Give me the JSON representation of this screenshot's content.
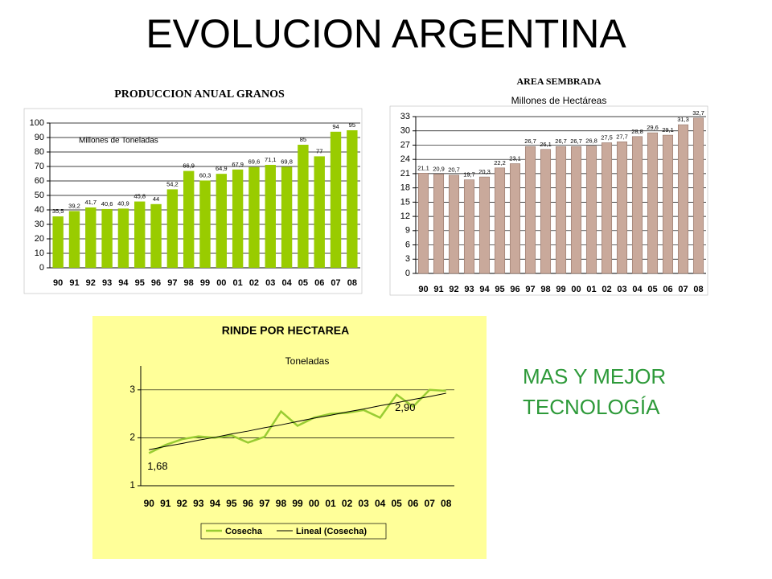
{
  "title": "EVOLUCION  ARGENTINA",
  "note": [
    "MAS Y MEJOR",
    "TECNOLOGÍA"
  ],
  "chart_data": [
    {
      "type": "bar",
      "title": "PRODUCCION  ANUAL GRANOS",
      "subtitle": "Millones de Toneladas",
      "categories": [
        "90",
        "91",
        "92",
        "93",
        "94",
        "95",
        "96",
        "97",
        "98",
        "99",
        "00",
        "01",
        "02",
        "03",
        "04",
        "05",
        "06",
        "07",
        "08"
      ],
      "values": [
        35.5,
        39.2,
        41.7,
        40.6,
        40.9,
        45.8,
        44,
        54.2,
        66.9,
        60.3,
        64.9,
        67.9,
        69.6,
        71.1,
        69.8,
        85,
        77,
        94,
        95
      ],
      "value_labels": [
        "35,5",
        "39,2",
        "41,7",
        "40,6",
        "40,9",
        "45,8",
        "44",
        "54,2",
        "66,9",
        "60,3",
        "64,9",
        "67,9",
        "69,6",
        "71,1",
        "69,8",
        "85",
        "77",
        "94",
        "95"
      ],
      "color": "#99cc00",
      "ylim": [
        0,
        100
      ],
      "yticks": [
        0,
        10,
        20,
        30,
        40,
        50,
        60,
        70,
        80,
        90,
        100
      ],
      "grid": true
    },
    {
      "type": "bar",
      "title": "AREA SEMBRADA",
      "subtitle": "Millones de Hectáreas",
      "categories": [
        "90",
        "91",
        "92",
        "93",
        "94",
        "95",
        "96",
        "97",
        "98",
        "99",
        "00",
        "01",
        "02",
        "03",
        "04",
        "05",
        "06",
        "07",
        "08"
      ],
      "values": [
        21.1,
        20.9,
        20.7,
        19.7,
        20.3,
        22.2,
        23.1,
        26.7,
        26.1,
        26.7,
        26.7,
        26.8,
        27.5,
        27.7,
        28.8,
        29.6,
        29.1,
        31.3,
        32.7
      ],
      "value_labels": [
        "21,1",
        "20,9",
        "20,7",
        "19,7",
        "20,3",
        "22,2",
        "23,1",
        "26,7",
        "26,1",
        "26,7",
        "26,7",
        "26,8",
        "27,5",
        "27,7",
        "28,8",
        "29,6",
        "29,1",
        "31,3",
        "32,7"
      ],
      "color": "#c9a99b",
      "ylim": [
        0,
        33
      ],
      "yticks": [
        0,
        3,
        6,
        9,
        12,
        15,
        18,
        21,
        24,
        27,
        30,
        33
      ],
      "grid": true
    },
    {
      "type": "line",
      "title": "RINDE POR HECTAREA",
      "subtitle": "Toneladas",
      "categories": [
        "90",
        "91",
        "92",
        "93",
        "94",
        "95",
        "96",
        "97",
        "98",
        "99",
        "00",
        "01",
        "02",
        "03",
        "04",
        "05",
        "06",
        "07",
        "08"
      ],
      "series": [
        {
          "name": "Cosecha",
          "color": "#99cc33",
          "values": [
            1.68,
            1.85,
            1.97,
            2.03,
            2.0,
            2.05,
            1.9,
            2.02,
            2.55,
            2.25,
            2.42,
            2.5,
            2.52,
            2.58,
            2.42,
            2.9,
            2.65,
            3.0,
            2.98
          ]
        },
        {
          "name": "Lineal (Cosecha)",
          "color": "#000000",
          "values": [
            1.75,
            1.82,
            1.88,
            1.95,
            2.01,
            2.08,
            2.14,
            2.21,
            2.27,
            2.34,
            2.41,
            2.47,
            2.54,
            2.6,
            2.67,
            2.73,
            2.8,
            2.86,
            2.93
          ]
        }
      ],
      "annotations": [
        {
          "label": "1,68",
          "value": 1.68,
          "x": "90"
        },
        {
          "label": "2,90",
          "value": 2.9,
          "x": "05"
        }
      ],
      "ylim": [
        1,
        3.5
      ],
      "yticks": [
        1,
        2,
        3
      ],
      "grid": true,
      "background": "#ffff99",
      "legend": "bottom"
    }
  ]
}
